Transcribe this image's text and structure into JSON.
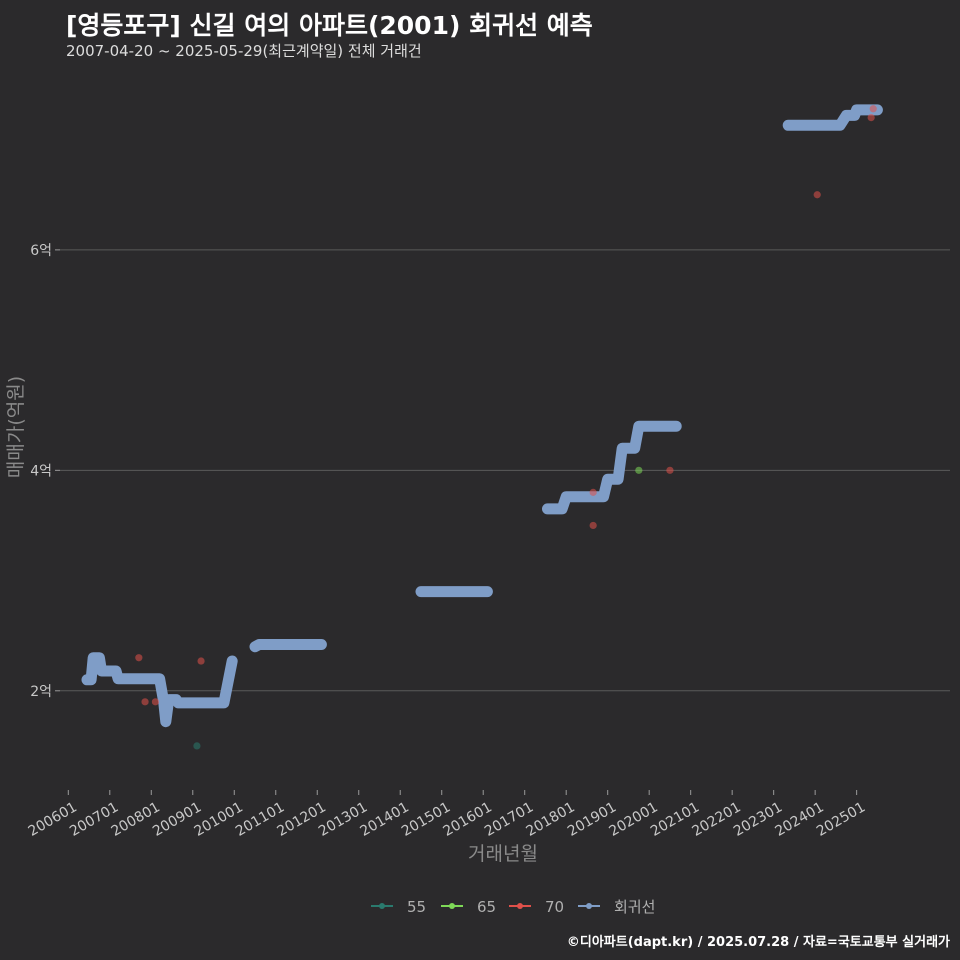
{
  "header": {
    "title": "[영등포구] 신길 여의 아파트(2001) 회귀선 예측",
    "subtitle": "2007-04-20 ~ 2025-05-29(최근계약일) 전체 거래건"
  },
  "footer": {
    "credit": "©디아파트(dapt.kr) / 2025.07.28 / 자료=국토교통부 실거래가"
  },
  "colors": {
    "background": "#2b2a2c",
    "grid": "#5a5a5a",
    "s55": "#2a7a6e",
    "s65": "#7ed957",
    "s70": "#e0504a",
    "regression": "#7f9dc7"
  },
  "chart_data": {
    "type": "scatter",
    "title": "[영등포구] 신길 여의 아파트(2001) 회귀선 예측",
    "xlabel": "거래년월",
    "ylabel": "매매가(억원)",
    "xlim": [
      2005.8,
      2027.25
    ],
    "ylim": [
      1.1,
      7.65
    ],
    "x_ticks": [
      2006,
      2007,
      2008,
      2009,
      2010,
      2011,
      2012,
      2013,
      2014,
      2015,
      2016,
      2017,
      2018,
      2019,
      2020,
      2021,
      2022,
      2023,
      2024,
      2025
    ],
    "x_tick_labels": [
      "200601",
      "200701",
      "200801",
      "200901",
      "201001",
      "201101",
      "201201",
      "201301",
      "201401",
      "201501",
      "201601",
      "201701",
      "201801",
      "201901",
      "202001",
      "202101",
      "202201",
      "202301",
      "202401",
      "202501"
    ],
    "y_ticks": [
      2,
      4,
      6
    ],
    "y_tick_labels": [
      "2억",
      "4억",
      "6억"
    ],
    "legend": [
      "55",
      "65",
      "70",
      "회귀선"
    ],
    "legend_position": "bottom",
    "series": [
      {
        "name": "55",
        "points": [
          [
            2009.1,
            1.5
          ]
        ]
      },
      {
        "name": "65",
        "points": [
          [
            2019.75,
            4.0
          ]
        ]
      },
      {
        "name": "70",
        "points": [
          [
            2007.7,
            2.3
          ],
          [
            2007.85,
            1.9
          ],
          [
            2008.1,
            1.9
          ],
          [
            2009.2,
            2.27
          ],
          [
            2018.65,
            3.5
          ],
          [
            2018.65,
            3.8
          ],
          [
            2020.5,
            4.0
          ],
          [
            2024.05,
            6.5
          ],
          [
            2025.35,
            7.2
          ],
          [
            2025.4,
            7.28
          ]
        ]
      }
    ],
    "regression": [
      [
        [
          2006.45,
          2.1
        ],
        [
          2006.55,
          2.1
        ],
        [
          2006.6,
          2.3
        ],
        [
          2006.75,
          2.3
        ],
        [
          2006.8,
          2.18
        ],
        [
          2007.15,
          2.18
        ],
        [
          2007.2,
          2.11
        ],
        [
          2008.2,
          2.11
        ],
        [
          2008.3,
          1.9
        ],
        [
          2008.35,
          1.72
        ],
        [
          2008.42,
          1.92
        ],
        [
          2008.6,
          1.92
        ],
        [
          2008.65,
          1.89
        ],
        [
          2009.75,
          1.89
        ],
        [
          2009.95,
          2.27
        ]
      ],
      [
        [
          2010.5,
          2.4
        ],
        [
          2010.6,
          2.42
        ],
        [
          2011.95,
          2.42
        ],
        [
          2012.1,
          2.42
        ]
      ],
      [
        [
          2014.5,
          2.9
        ],
        [
          2016.1,
          2.9
        ]
      ],
      [
        [
          2017.55,
          3.65
        ],
        [
          2017.9,
          3.65
        ],
        [
          2018.0,
          3.76
        ],
        [
          2018.9,
          3.76
        ],
        [
          2019.0,
          3.92
        ],
        [
          2019.25,
          3.92
        ],
        [
          2019.35,
          4.2
        ],
        [
          2019.65,
          4.2
        ],
        [
          2019.75,
          4.4
        ],
        [
          2020.65,
          4.4
        ]
      ],
      [
        [
          2023.35,
          7.13
        ],
        [
          2024.6,
          7.13
        ],
        [
          2024.75,
          7.22
        ],
        [
          2024.95,
          7.22
        ],
        [
          2025.0,
          7.27
        ],
        [
          2025.5,
          7.27
        ]
      ]
    ]
  }
}
